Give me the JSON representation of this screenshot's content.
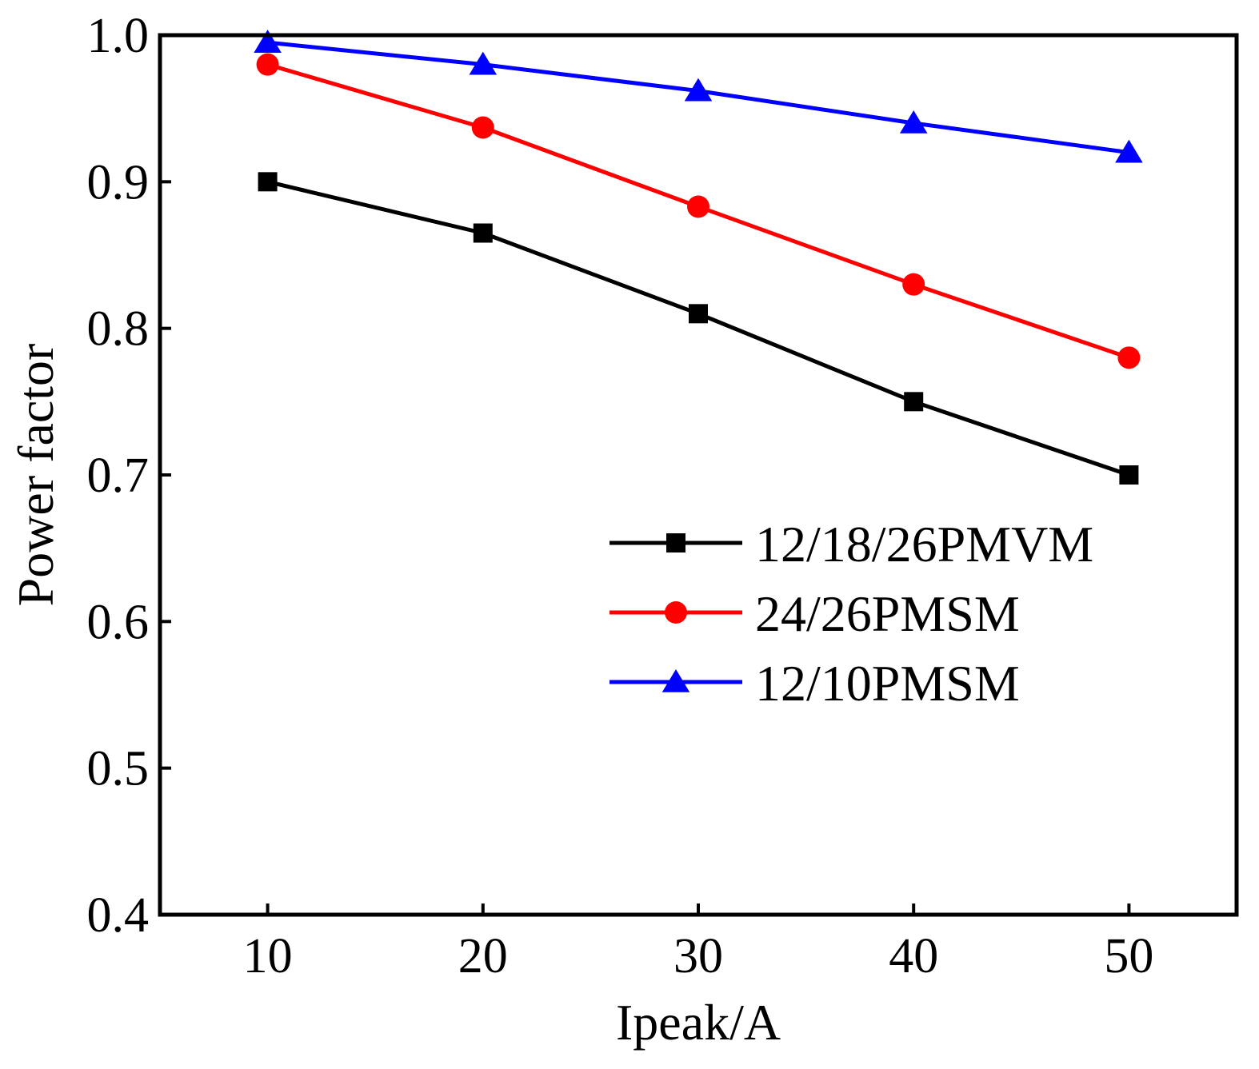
{
  "chart_data": {
    "type": "line",
    "xlabel": "Ipeak/A",
    "ylabel": "Power factor",
    "x": [
      10,
      20,
      30,
      40,
      50
    ],
    "xlim": [
      5,
      55
    ],
    "ylim": [
      0.4,
      1.0
    ],
    "xticks": [
      10,
      20,
      30,
      40,
      50
    ],
    "xtick_labels": [
      "10",
      "20",
      "30",
      "40",
      "50"
    ],
    "yticks": [
      0.4,
      0.5,
      0.6,
      0.7,
      0.8,
      0.9,
      1.0
    ],
    "ytick_labels": [
      "0.4",
      "0.5",
      "0.6",
      "0.7",
      "0.8",
      "0.9",
      "1.0"
    ],
    "grid": false,
    "legend_position": "center-right",
    "series": [
      {
        "name": "12/18/26PMVM",
        "values": [
          0.9,
          0.865,
          0.81,
          0.75,
          0.7
        ],
        "color": "#000000",
        "marker": "square"
      },
      {
        "name": "24/26PMSM",
        "values": [
          0.98,
          0.937,
          0.883,
          0.83,
          0.78
        ],
        "color": "#ff0000",
        "marker": "circle"
      },
      {
        "name": "12/10PMSM",
        "values": [
          0.995,
          0.98,
          0.962,
          0.94,
          0.92
        ],
        "color": "#0000ff",
        "marker": "triangle"
      }
    ]
  }
}
